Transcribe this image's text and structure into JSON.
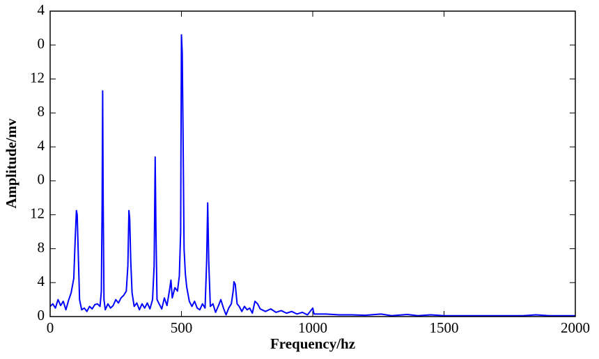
{
  "chart_data": {
    "type": "line",
    "xlabel": "Frequency/hz",
    "ylabel": "Amplitude/mv",
    "xlim": [
      0,
      2000
    ],
    "xticks": [
      0,
      500,
      1000,
      1500,
      2000
    ],
    "ylim": [
      0,
      36
    ],
    "yticks": [
      0,
      4,
      8,
      12,
      {
        "value": 16,
        "label": "0"
      },
      {
        "value": 20,
        "label": "4"
      },
      {
        "value": 24,
        "label": "8"
      },
      {
        "value": 28,
        "label": "12"
      },
      {
        "value": 32,
        "label": "0"
      },
      {
        "value": 36,
        "label": "4"
      }
    ],
    "series": [
      {
        "color": "#0000ff",
        "x": [
          0,
          10,
          20,
          30,
          40,
          50,
          60,
          70,
          80,
          90,
          95,
          100,
          103,
          107,
          112,
          120,
          130,
          140,
          150,
          160,
          170,
          180,
          190,
          195,
          198,
          200,
          202,
          205,
          210,
          220,
          230,
          240,
          250,
          260,
          270,
          280,
          290,
          296,
          300,
          303,
          307,
          312,
          320,
          330,
          340,
          350,
          360,
          370,
          380,
          390,
          396,
          400,
          403,
          407,
          415,
          425,
          435,
          445,
          455,
          460,
          465,
          475,
          485,
          492,
          497,
          500,
          503,
          506,
          510,
          515,
          520,
          530,
          540,
          550,
          560,
          570,
          580,
          590,
          596,
          600,
          604,
          610,
          620,
          630,
          640,
          650,
          660,
          670,
          680,
          690,
          697,
          700,
          705,
          712,
          720,
          730,
          740,
          750,
          760,
          770,
          780,
          790,
          800,
          820,
          840,
          860,
          880,
          900,
          920,
          940,
          960,
          980,
          1000,
          1005,
          1050,
          1100,
          1150,
          1200,
          1260,
          1300,
          1360,
          1400,
          1450,
          1500,
          1600,
          1700,
          1800,
          1850,
          1900,
          2000
        ],
        "values": [
          1.2,
          1.5,
          1.0,
          2.0,
          1.3,
          1.8,
          0.8,
          1.9,
          2.8,
          4.5,
          8.8,
          12.5,
          12.0,
          7.5,
          2.0,
          0.8,
          1.0,
          0.6,
          1.2,
          0.9,
          1.4,
          1.5,
          1.2,
          3.0,
          13.5,
          26.6,
          13.5,
          2.0,
          0.8,
          1.5,
          1.0,
          1.3,
          2.0,
          1.6,
          2.2,
          2.5,
          3.0,
          6.0,
          12.5,
          11.5,
          6.5,
          2.8,
          1.2,
          1.6,
          0.8,
          1.5,
          1.0,
          1.6,
          0.9,
          2.0,
          6.0,
          18.8,
          10.0,
          2.0,
          1.5,
          0.9,
          2.2,
          1.3,
          3.2,
          4.3,
          2.2,
          3.4,
          3.0,
          4.8,
          10.0,
          33.2,
          31.1,
          22.0,
          8.0,
          5.0,
          3.5,
          1.8,
          1.2,
          1.8,
          1.0,
          0.8,
          1.5,
          1.0,
          6.5,
          13.4,
          6.5,
          1.2,
          1.5,
          0.5,
          1.2,
          2.0,
          1.0,
          0.2,
          1.0,
          1.5,
          3.0,
          4.1,
          3.8,
          1.5,
          1.2,
          0.6,
          1.2,
          0.8,
          1.0,
          0.4,
          1.8,
          1.5,
          0.9,
          0.6,
          0.9,
          0.5,
          0.7,
          0.4,
          0.6,
          0.3,
          0.5,
          0.2,
          1.0,
          0.3,
          0.3,
          0.2,
          0.2,
          0.15,
          0.3,
          0.1,
          0.25,
          0.1,
          0.2,
          0.1,
          0.1,
          0.1,
          0.1,
          0.2,
          0.1,
          0.1
        ]
      }
    ]
  }
}
